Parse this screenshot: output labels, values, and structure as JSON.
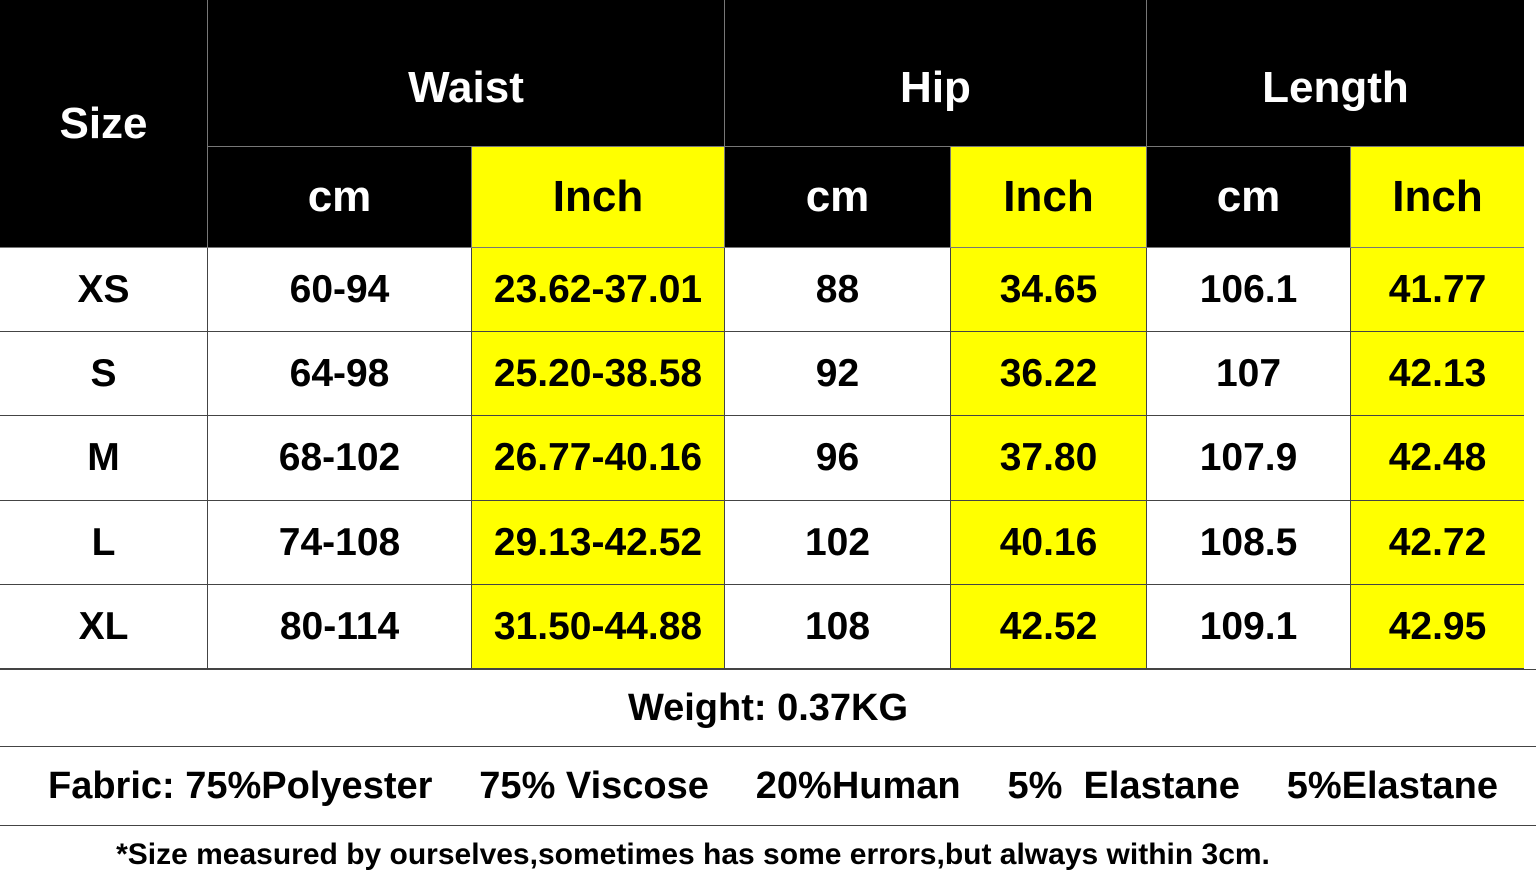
{
  "header": {
    "size": "Size",
    "groups": [
      "Waist",
      "Hip",
      "Length"
    ],
    "units": [
      "cm",
      "Inch",
      "cm",
      "Inch",
      "cm",
      "Inch"
    ]
  },
  "table": {
    "rows": [
      [
        "XS",
        "60-94",
        "23.62-37.01",
        "88",
        "34.65",
        "106.1",
        "41.77"
      ],
      [
        "S",
        "64-98",
        "25.20-38.58",
        "92",
        "36.22",
        "107",
        "42.13"
      ],
      [
        "M",
        "68-102",
        "26.77-40.16",
        "96",
        "37.80",
        "107.9",
        "42.48"
      ],
      [
        "L",
        "74-108",
        "29.13-42.52",
        "102",
        "40.16",
        "108.5",
        "42.72"
      ],
      [
        "XL",
        "80-114",
        "31.50-44.88",
        "108",
        "42.52",
        "109.1",
        "42.95"
      ]
    ]
  },
  "weight": "Weight: 0.37KG",
  "fabric": [
    "Fabric: 75%Polyester",
    "75% Viscose",
    "20%Human",
    "5%  Elastane",
    "5%Elastane"
  ],
  "note": "*Size measured by ourselves,sometimes has some errors,but always within 3cm."
}
